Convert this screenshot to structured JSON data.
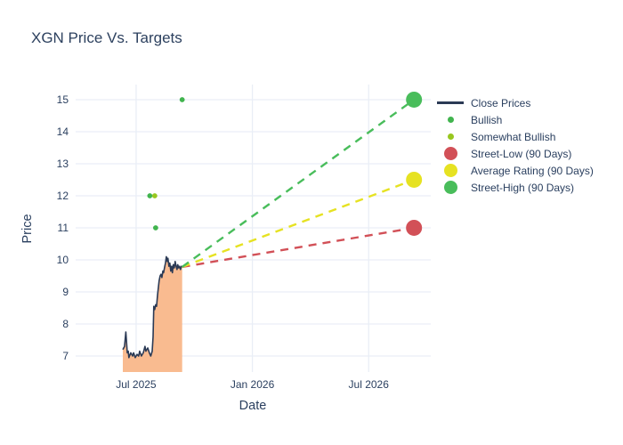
{
  "title": "XGN Price Vs. Targets",
  "chart_data": {
    "type": "line",
    "title": "XGN Price Vs. Targets",
    "xlabel": "Date",
    "ylabel": "Price",
    "colors": {
      "text": "#2a3f5f",
      "grid": "#e9eef6",
      "close_line": "#2b3a55",
      "close_fill": "#f9bb90",
      "bullish": "#41b44e",
      "somewhat_bullish": "#98c71f",
      "street_low": "#d25057",
      "average_rating": "#e6e222",
      "street_high": "#49bd5b"
    },
    "x_axis": {
      "range": [
        2025.24,
        2026.767
      ],
      "ticks": [
        {
          "v": 2025.5,
          "label": "Jul 2025"
        },
        {
          "v": 2026.0,
          "label": "Jan 2026"
        },
        {
          "v": 2026.5,
          "label": "Jul 2026"
        }
      ]
    },
    "y_axis": {
      "range": [
        6.5,
        15.472
      ],
      "ticks": [
        7,
        8,
        9,
        10,
        11,
        12,
        13,
        14,
        15
      ]
    },
    "close_series": {
      "name": "Close Prices",
      "x": [
        2025.443,
        2025.45,
        2025.456,
        2025.462,
        2025.466,
        2025.469,
        2025.477,
        2025.485,
        2025.489,
        2025.496,
        2025.504,
        2025.511,
        2025.515,
        2025.523,
        2025.531,
        2025.538,
        2025.542,
        2025.55,
        2025.557,
        2025.563,
        2025.569,
        2025.573,
        2025.576,
        2025.58,
        2025.584,
        2025.588,
        2025.592,
        2025.595,
        2025.599,
        2025.603,
        2025.607,
        2025.611,
        2025.615,
        2025.618,
        2025.622,
        2025.626,
        2025.63,
        2025.634,
        2025.637,
        2025.641,
        2025.645,
        2025.649,
        2025.653,
        2025.656,
        2025.66,
        2025.664,
        2025.668,
        2025.672,
        2025.676,
        2025.679,
        2025.683,
        2025.687,
        2025.691,
        2025.695,
        2025.698
      ],
      "y": [
        7.2,
        7.3,
        7.75,
        7.1,
        7.15,
        6.95,
        7.1,
        7.0,
        7.1,
        6.95,
        7.05,
        7.0,
        7.15,
        7.0,
        7.1,
        7.3,
        7.15,
        7.25,
        7.1,
        7.0,
        7.15,
        7.6,
        8.55,
        8.45,
        8.6,
        8.55,
        8.9,
        9.1,
        9.35,
        9.5,
        9.55,
        9.45,
        9.65,
        9.6,
        9.75,
        9.9,
        10.1,
        9.95,
        10.05,
        9.8,
        9.9,
        9.65,
        9.8,
        9.6,
        9.85,
        9.75,
        9.95,
        9.8,
        9.7,
        9.85,
        9.75,
        9.8,
        9.7,
        9.8,
        9.78
      ]
    },
    "scatter_series": [
      {
        "name": "Bullish",
        "color_key": "bullish",
        "points": [
          [
            2025.559,
            12.0
          ],
          [
            2025.584,
            11.0
          ],
          [
            2025.698,
            15.0
          ]
        ]
      },
      {
        "name": "Somewhat Bullish",
        "color_key": "somewhat_bullish",
        "points": [
          [
            2025.58,
            12.0
          ]
        ]
      }
    ],
    "target_series": [
      {
        "name": "Street-Low (90 Days)",
        "color_key": "street_low",
        "from": [
          2025.698,
          9.78
        ],
        "to": [
          2026.695,
          11.0
        ]
      },
      {
        "name": "Average Rating (90 Days)",
        "color_key": "average_rating",
        "from": [
          2025.698,
          9.78
        ],
        "to": [
          2026.695,
          12.5
        ]
      },
      {
        "name": "Street-High (90 Days)",
        "color_key": "street_high",
        "from": [
          2025.698,
          9.78
        ],
        "to": [
          2026.695,
          15.0
        ]
      }
    ],
    "legend": [
      {
        "label": "Close Prices",
        "swatch": "line",
        "color_key": "close_line"
      },
      {
        "label": "Bullish",
        "swatch": "dot",
        "color_key": "bullish"
      },
      {
        "label": "Somewhat Bullish",
        "swatch": "dot",
        "color_key": "somewhat_bullish"
      },
      {
        "label": "Street-Low (90 Days)",
        "swatch": "big",
        "color_key": "street_low"
      },
      {
        "label": "Average Rating (90 Days)",
        "swatch": "big",
        "color_key": "average_rating"
      },
      {
        "label": "Street-High (90 Days)",
        "swatch": "big",
        "color_key": "street_high"
      }
    ]
  }
}
